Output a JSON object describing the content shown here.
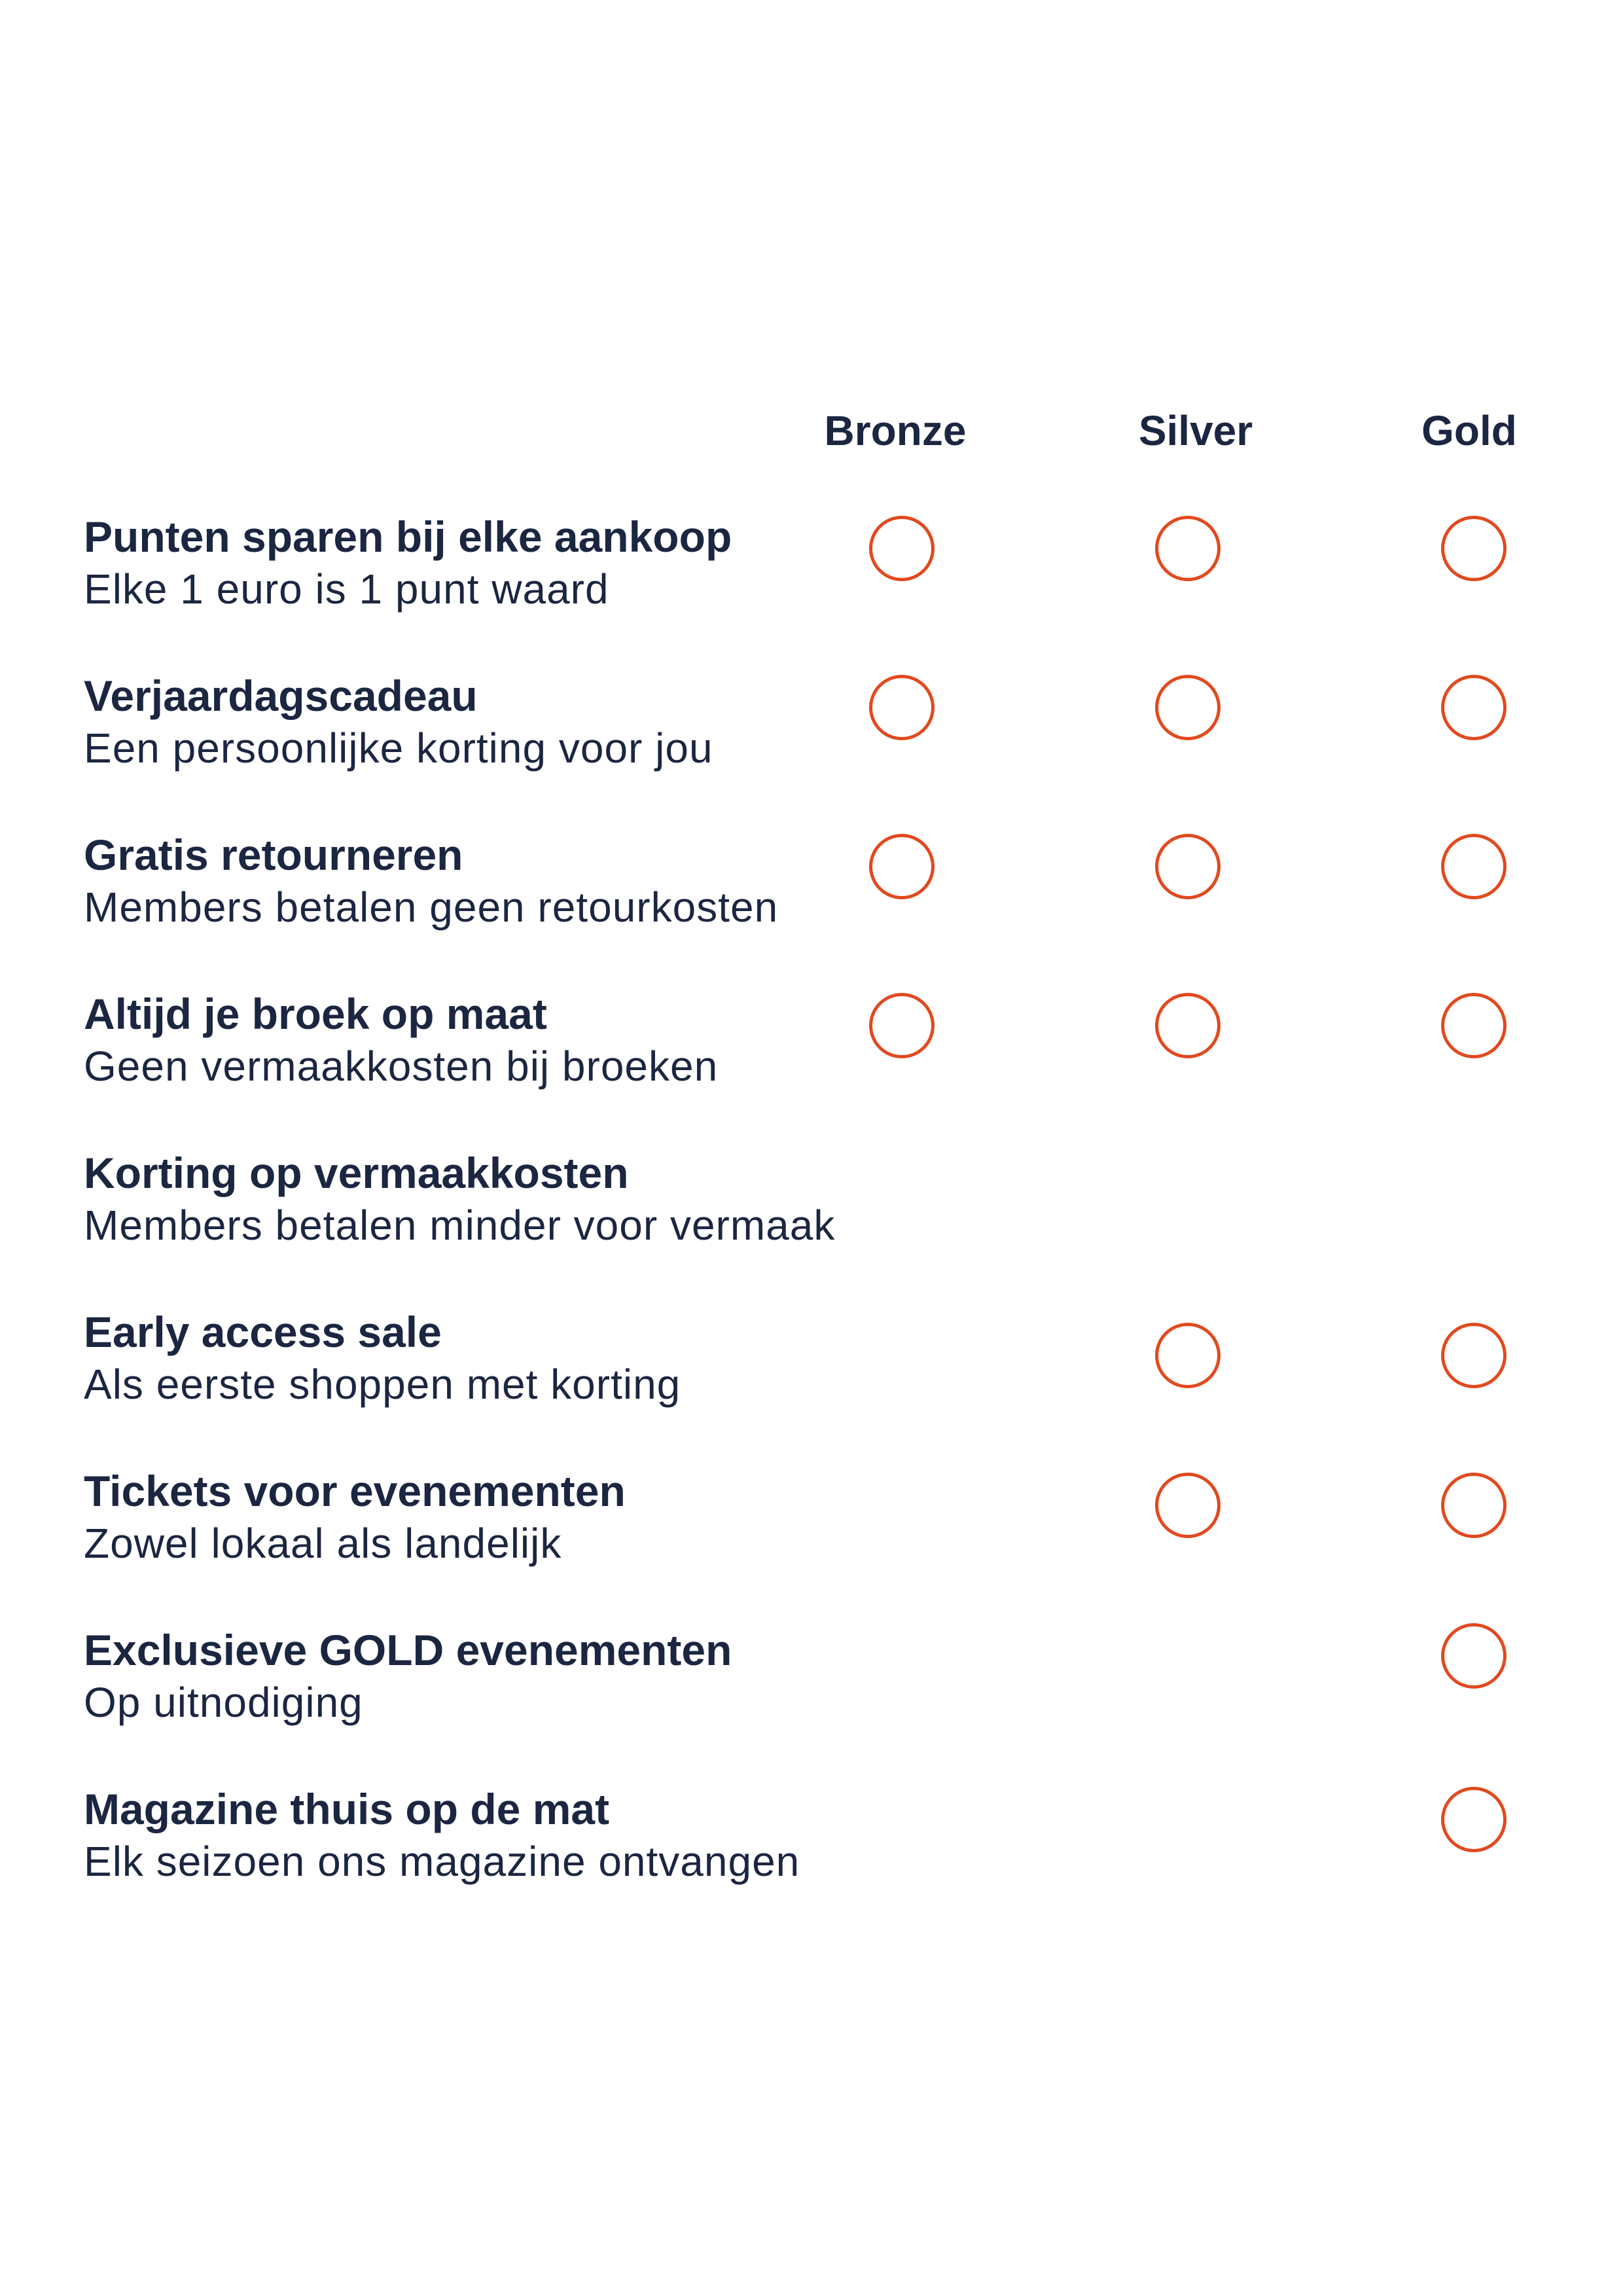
{
  "colors": {
    "text": "#1b2641",
    "circle": "#e2491e",
    "background": "#ffffff"
  },
  "tiers": [
    "Bronze",
    "Silver",
    "Gold"
  ],
  "benefits": [
    {
      "title": "Punten sparen bij elke aankoop",
      "description": "Elke 1 euro is 1 punt waard",
      "included": {
        "bronze": true,
        "silver": true,
        "gold": true
      }
    },
    {
      "title": "Verjaardagscadeau",
      "description": "Een persoonlijke korting voor jou",
      "included": {
        "bronze": true,
        "silver": true,
        "gold": true
      }
    },
    {
      "title": "Gratis retourneren",
      "description": "Members betalen geen retourkosten",
      "included": {
        "bronze": true,
        "silver": true,
        "gold": true
      }
    },
    {
      "title": "Altijd je broek op maat",
      "description": "Geen vermaakkosten bij broeken",
      "included": {
        "bronze": true,
        "silver": true,
        "gold": true
      }
    },
    {
      "title": "Korting op vermaakkosten",
      "description": "Members betalen minder voor vermaak",
      "included": {
        "bronze": false,
        "silver": false,
        "gold": false
      }
    },
    {
      "title": "Early access sale",
      "description": "Als eerste shoppen met korting",
      "included": {
        "bronze": false,
        "silver": true,
        "gold": true
      }
    },
    {
      "title": "Tickets voor evenementen",
      "description": "Zowel lokaal als landelijk",
      "included": {
        "bronze": false,
        "silver": true,
        "gold": true
      }
    },
    {
      "title": "Exclusieve GOLD evenementen",
      "description": "Op uitnodiging",
      "included": {
        "bronze": false,
        "silver": false,
        "gold": true
      }
    },
    {
      "title": "Magazine thuis op de mat",
      "description": "Elk seizoen ons magazine ontvangen",
      "included": {
        "bronze": false,
        "silver": false,
        "gold": true
      }
    }
  ]
}
